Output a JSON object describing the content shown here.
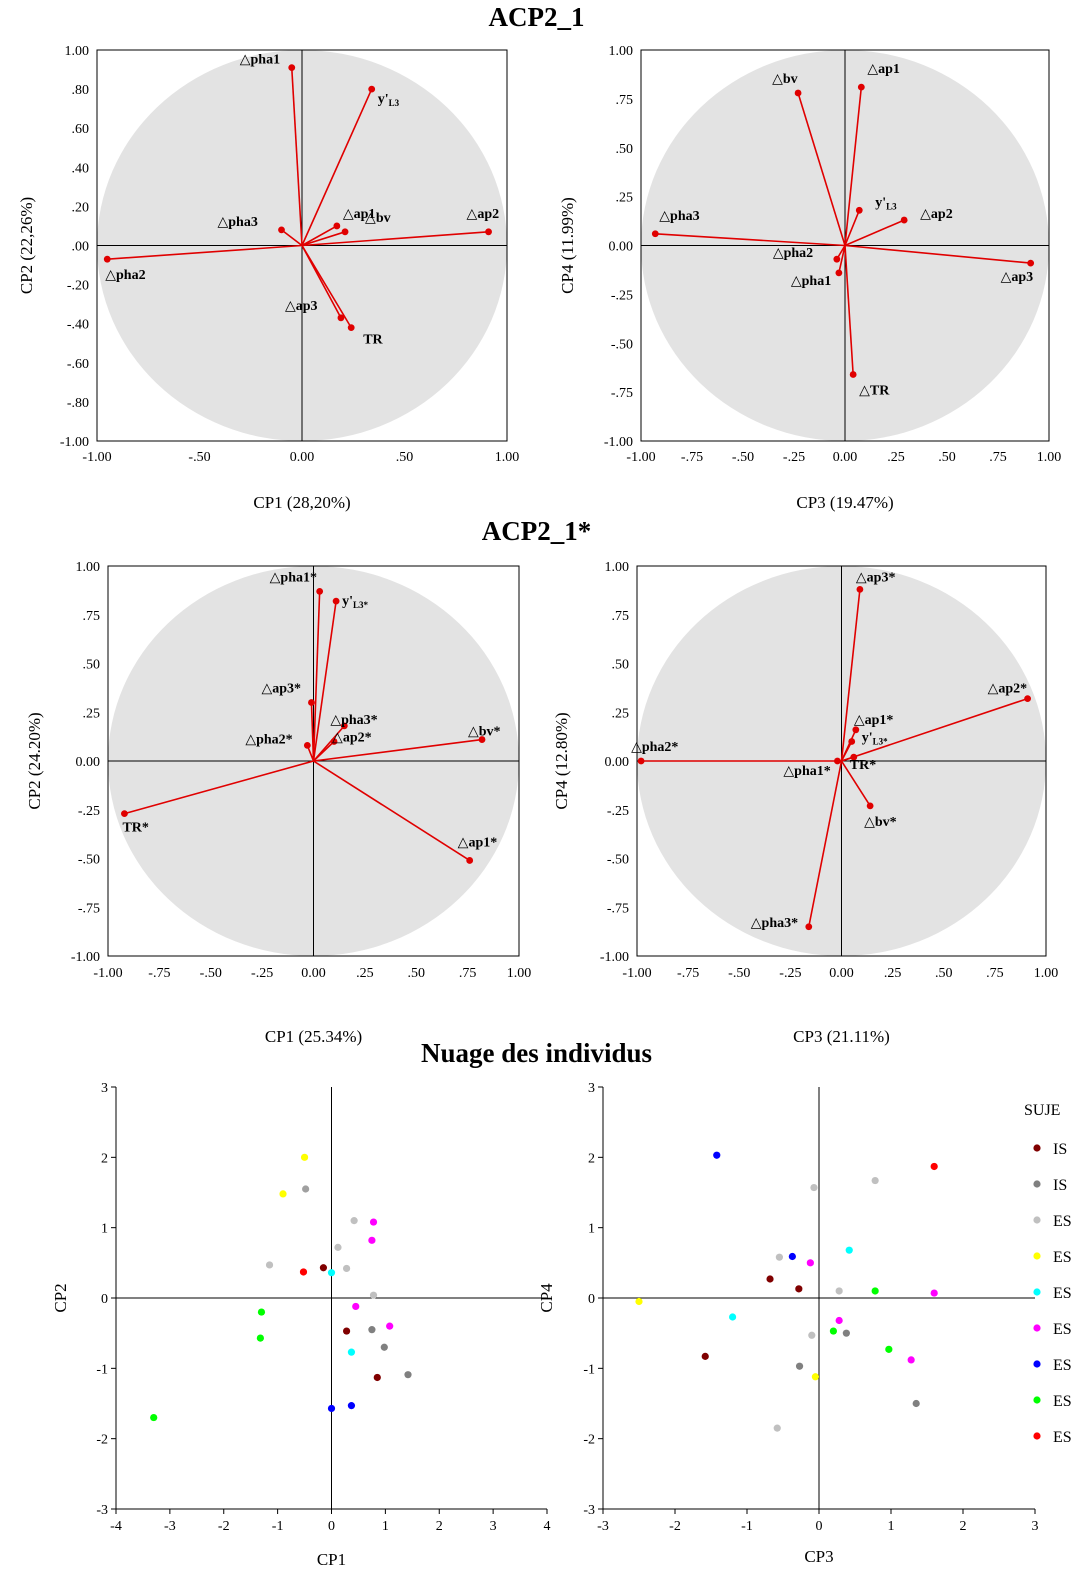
{
  "titles": {
    "acp1": "ACP2_1",
    "acp2": "ACP2_1*",
    "cloud": "Nuage des individus"
  },
  "chart_data": [
    {
      "type": "scatter",
      "subtype": "correlation-circle",
      "group": "ACP2_1",
      "xlabel": "CP1 (28,20%)",
      "ylabel": "CP2 (22,26%)",
      "xlim": [
        -1,
        1
      ],
      "ylim": [
        -1,
        1
      ],
      "xticks": [
        -1,
        -0.5,
        0,
        0.5,
        1
      ],
      "xtick_labels": [
        "-1.00",
        "-.50",
        "0.00",
        ".50",
        "1.00"
      ],
      "yticks": [
        1,
        0.8,
        0.6,
        0.4,
        0.2,
        0,
        -0.2,
        -0.4,
        -0.6,
        -0.8,
        -1
      ],
      "ytick_labels": [
        "1.00",
        ".80",
        ".60",
        ".40",
        ".20",
        ".00",
        "-.20",
        "-.40",
        "-.60",
        "-.80",
        "-1.00"
      ],
      "grid": false,
      "vectors": [
        {
          "label": "△pha1",
          "x": -0.05,
          "y": 0.91
        },
        {
          "label": "y'",
          "sub": "L3",
          "x": 0.34,
          "y": 0.8
        },
        {
          "label": "△pha3",
          "x": -0.1,
          "y": 0.08
        },
        {
          "label": "△ap1",
          "x": 0.17,
          "y": 0.1
        },
        {
          "label": "△bv",
          "x": 0.21,
          "y": 0.07
        },
        {
          "label": "△ap2",
          "x": 0.91,
          "y": 0.07
        },
        {
          "label": "△pha2",
          "x": -0.95,
          "y": -0.07
        },
        {
          "label": "△ap3",
          "x": 0.19,
          "y": -0.37
        },
        {
          "label": "TR",
          "x": 0.24,
          "y": -0.42
        }
      ]
    },
    {
      "type": "scatter",
      "subtype": "correlation-circle",
      "group": "ACP2_1",
      "xlabel": "CP3 (19.47%)",
      "ylabel": "CP4 (11.99%)",
      "xlim": [
        -1,
        1
      ],
      "ylim": [
        -1,
        1
      ],
      "xticks": [
        -1,
        -0.75,
        -0.5,
        -0.25,
        0,
        0.25,
        0.5,
        0.75,
        1
      ],
      "xtick_labels": [
        "-1.00",
        "-.75",
        "-.50",
        "-.25",
        "0.00",
        ".25",
        ".50",
        ".75",
        "1.00"
      ],
      "yticks": [
        1,
        0.75,
        0.5,
        0.25,
        0,
        -0.25,
        -0.5,
        -0.75,
        -1
      ],
      "ytick_labels": [
        "1.00",
        ".75",
        ".50",
        ".25",
        "0.00",
        "-.25",
        "-.50",
        "-.75",
        "-1.00"
      ],
      "grid": false,
      "vectors": [
        {
          "label": "△bv",
          "x": -0.23,
          "y": 0.78
        },
        {
          "label": "△ap1",
          "x": 0.08,
          "y": 0.81
        },
        {
          "label": "y'",
          "sub": "L3",
          "x": 0.07,
          "y": 0.18
        },
        {
          "label": "△ap2",
          "x": 0.29,
          "y": 0.13
        },
        {
          "label": "△pha3",
          "x": -0.93,
          "y": 0.06
        },
        {
          "label": "△pha2",
          "x": -0.04,
          "y": -0.07
        },
        {
          "label": "△pha1",
          "x": -0.03,
          "y": -0.14
        },
        {
          "label": "△ap3",
          "x": 0.91,
          "y": -0.09
        },
        {
          "label": "△TR",
          "x": 0.04,
          "y": -0.66
        }
      ]
    },
    {
      "type": "scatter",
      "subtype": "correlation-circle",
      "group": "ACP2_1*",
      "xlabel": "CP1 (25.34%)",
      "ylabel": "CP2 (24.20%)",
      "xlim": [
        -1,
        1
      ],
      "ylim": [
        -1,
        1
      ],
      "xticks": [
        -1,
        -0.75,
        -0.5,
        -0.25,
        0,
        0.25,
        0.5,
        0.75,
        1
      ],
      "xtick_labels": [
        "-1.00",
        "-.75",
        "-.50",
        "-.25",
        "0.00",
        ".25",
        ".50",
        ".75",
        "1.00"
      ],
      "yticks": [
        1,
        0.75,
        0.5,
        0.25,
        0,
        -0.25,
        -0.5,
        -0.75,
        -1
      ],
      "ytick_labels": [
        "1.00",
        ".75",
        ".50",
        ".25",
        "0.00",
        "-.25",
        "-.50",
        "-.75",
        "-1.00"
      ],
      "grid": false,
      "vectors": [
        {
          "label": "△pha1*",
          "x": 0.03,
          "y": 0.87
        },
        {
          "label": "y'",
          "sub": "L3*",
          "x": 0.11,
          "y": 0.82
        },
        {
          "label": "△ap3*",
          "x": -0.01,
          "y": 0.3
        },
        {
          "label": "△pha3*",
          "x": 0.15,
          "y": 0.18
        },
        {
          "label": "△pha2*",
          "x": -0.03,
          "y": 0.08
        },
        {
          "label": "△ap2*",
          "x": 0.1,
          "y": 0.1
        },
        {
          "label": "△bv*",
          "x": 0.82,
          "y": 0.11
        },
        {
          "label": "TR*",
          "x": -0.92,
          "y": -0.27
        },
        {
          "label": "△ap1*",
          "x": 0.76,
          "y": -0.51
        }
      ]
    },
    {
      "type": "scatter",
      "subtype": "correlation-circle",
      "group": "ACP2_1*",
      "xlabel": "CP3 (21.11%)",
      "ylabel": "CP4 (12.80%)",
      "xlim": [
        -1,
        1
      ],
      "ylim": [
        -1,
        1
      ],
      "xticks": [
        -1,
        -0.75,
        -0.5,
        -0.25,
        0,
        0.25,
        0.5,
        0.75,
        1
      ],
      "xtick_labels": [
        "-1.00",
        "-.75",
        "-.50",
        "-.25",
        "0.00",
        ".25",
        ".50",
        ".75",
        "1.00"
      ],
      "yticks": [
        1,
        0.75,
        0.5,
        0.25,
        0,
        -0.25,
        -0.5,
        -0.75,
        -1
      ],
      "ytick_labels": [
        "1.00",
        ".75",
        ".50",
        ".25",
        "0.00",
        "-.25",
        "-.50",
        "-.75",
        "-1.00"
      ],
      "grid": false,
      "vectors": [
        {
          "label": "△ap3*",
          "x": 0.09,
          "y": 0.88
        },
        {
          "label": "△ap2*",
          "x": 0.91,
          "y": 0.32
        },
        {
          "label": "△ap1*",
          "x": 0.07,
          "y": 0.16
        },
        {
          "label": "y'",
          "sub": "L3*",
          "x": 0.05,
          "y": 0.1
        },
        {
          "label": "TR*",
          "x": 0.06,
          "y": 0.02
        },
        {
          "label": "△pha2*",
          "x": -0.98,
          "y": 0.0
        },
        {
          "label": "△pha1*",
          "x": -0.02,
          "y": 0.0
        },
        {
          "label": "△bv*",
          "x": 0.14,
          "y": -0.23
        },
        {
          "label": "△pha3*",
          "x": -0.16,
          "y": -0.85
        }
      ]
    },
    {
      "type": "scatter",
      "group": "Nuage des individus",
      "xlabel": "CP1",
      "ylabel": "CP2",
      "xlim": [
        -4,
        4
      ],
      "ylim": [
        -3,
        3
      ],
      "xticks": [
        -4,
        -3,
        -2,
        -1,
        0,
        1,
        2,
        3,
        4
      ],
      "yticks": [
        -3,
        -2,
        -1,
        0,
        1,
        2,
        3
      ],
      "grid": false,
      "points": [
        {
          "x": -0.5,
          "y": 2.0,
          "color": "#ffff00"
        },
        {
          "x": -0.9,
          "y": 1.48,
          "color": "#ffff00"
        },
        {
          "x": -0.48,
          "y": 1.55,
          "color": "#a0a0a0"
        },
        {
          "x": 0.42,
          "y": 1.1,
          "color": "#c0c0c0"
        },
        {
          "x": 0.78,
          "y": 1.08,
          "color": "#ff00ff"
        },
        {
          "x": 0.75,
          "y": 0.82,
          "color": "#ff00ff"
        },
        {
          "x": 0.12,
          "y": 0.72,
          "color": "#c0c0c0"
        },
        {
          "x": -1.15,
          "y": 0.47,
          "color": "#c0c0c0"
        },
        {
          "x": -0.15,
          "y": 0.43,
          "color": "#800000"
        },
        {
          "x": -0.52,
          "y": 0.37,
          "color": "#ff0000"
        },
        {
          "x": 0.28,
          "y": 0.42,
          "color": "#c0c0c0"
        },
        {
          "x": 0.0,
          "y": 0.36,
          "color": "#00ffff"
        },
        {
          "x": 0.78,
          "y": 0.04,
          "color": "#c0c0c0"
        },
        {
          "x": -1.3,
          "y": -0.2,
          "color": "#00ff00"
        },
        {
          "x": 0.45,
          "y": -0.12,
          "color": "#ff00ff"
        },
        {
          "x": 1.08,
          "y": -0.4,
          "color": "#ff00ff"
        },
        {
          "x": 0.28,
          "y": -0.47,
          "color": "#800000"
        },
        {
          "x": 0.75,
          "y": -0.45,
          "color": "#808080"
        },
        {
          "x": -1.32,
          "y": -0.57,
          "color": "#00ff00"
        },
        {
          "x": 0.98,
          "y": -0.7,
          "color": "#808080"
        },
        {
          "x": 0.37,
          "y": -0.77,
          "color": "#00ffff"
        },
        {
          "x": 1.42,
          "y": -1.09,
          "color": "#808080"
        },
        {
          "x": 0.85,
          "y": -1.13,
          "color": "#800000"
        },
        {
          "x": 0.37,
          "y": -1.53,
          "color": "#0000ff"
        },
        {
          "x": 0.0,
          "y": -1.57,
          "color": "#0000ff"
        },
        {
          "x": -3.3,
          "y": -1.7,
          "color": "#00ff00"
        }
      ]
    },
    {
      "type": "scatter",
      "group": "Nuage des individus",
      "xlabel": "CP3",
      "ylabel": "CP4",
      "xlim": [
        -3,
        3
      ],
      "ylim": [
        -3,
        3
      ],
      "xticks": [
        -3,
        -2,
        -1,
        0,
        1,
        2,
        3
      ],
      "yticks": [
        -3,
        -2,
        -1,
        0,
        1,
        2,
        3
      ],
      "grid": false,
      "points": [
        {
          "x": -1.42,
          "y": 2.03,
          "color": "#0000ff"
        },
        {
          "x": 1.6,
          "y": 1.87,
          "color": "#ff0000"
        },
        {
          "x": 0.78,
          "y": 1.67,
          "color": "#c0c0c0"
        },
        {
          "x": -0.07,
          "y": 1.57,
          "color": "#c0c0c0"
        },
        {
          "x": 0.42,
          "y": 0.68,
          "color": "#00ffff"
        },
        {
          "x": -0.55,
          "y": 0.58,
          "color": "#c0c0c0"
        },
        {
          "x": -0.37,
          "y": 0.59,
          "color": "#0000ff"
        },
        {
          "x": -0.12,
          "y": 0.5,
          "color": "#ff00ff"
        },
        {
          "x": -0.68,
          "y": 0.27,
          "color": "#800000"
        },
        {
          "x": -0.28,
          "y": 0.13,
          "color": "#800000"
        },
        {
          "x": 0.28,
          "y": 0.1,
          "color": "#c0c0c0"
        },
        {
          "x": 0.78,
          "y": 0.1,
          "color": "#00ff00"
        },
        {
          "x": 1.6,
          "y": 0.07,
          "color": "#ff00ff"
        },
        {
          "x": -2.5,
          "y": -0.05,
          "color": "#ffff00"
        },
        {
          "x": -1.2,
          "y": -0.27,
          "color": "#00ffff"
        },
        {
          "x": 0.28,
          "y": -0.32,
          "color": "#ff00ff"
        },
        {
          "x": 0.2,
          "y": -0.47,
          "color": "#00ff00"
        },
        {
          "x": 0.38,
          "y": -0.5,
          "color": "#808080"
        },
        {
          "x": -0.1,
          "y": -0.53,
          "color": "#c0c0c0"
        },
        {
          "x": 0.97,
          "y": -0.73,
          "color": "#00ff00"
        },
        {
          "x": -1.58,
          "y": -0.83,
          "color": "#800000"
        },
        {
          "x": 1.28,
          "y": -0.88,
          "color": "#ff00ff"
        },
        {
          "x": -0.27,
          "y": -0.97,
          "color": "#808080"
        },
        {
          "x": -0.05,
          "y": -1.12,
          "color": "#ffff00"
        },
        {
          "x": 1.35,
          "y": -1.5,
          "color": "#808080"
        },
        {
          "x": -0.58,
          "y": -1.85,
          "color": "#c0c0c0"
        }
      ],
      "legend": {
        "title": "SUJE",
        "placement": "right, clipped",
        "entries": [
          {
            "label": "IS",
            "color": "#800000"
          },
          {
            "label": "IS",
            "color": "#808080"
          },
          {
            "label": "ES",
            "color": "#c0c0c0"
          },
          {
            "label": "ES",
            "color": "#ffff00"
          },
          {
            "label": "ES",
            "color": "#00ffff"
          },
          {
            "label": "ES",
            "color": "#ff00ff"
          },
          {
            "label": "ES",
            "color": "#0000ff"
          },
          {
            "label": "ES",
            "color": "#00ff00"
          },
          {
            "label": "ES",
            "color": "#ff0000"
          }
        ]
      }
    }
  ],
  "colors": {
    "vector": "#e00000",
    "circle_fill": "#e3e3e3",
    "axis": "#000000"
  }
}
